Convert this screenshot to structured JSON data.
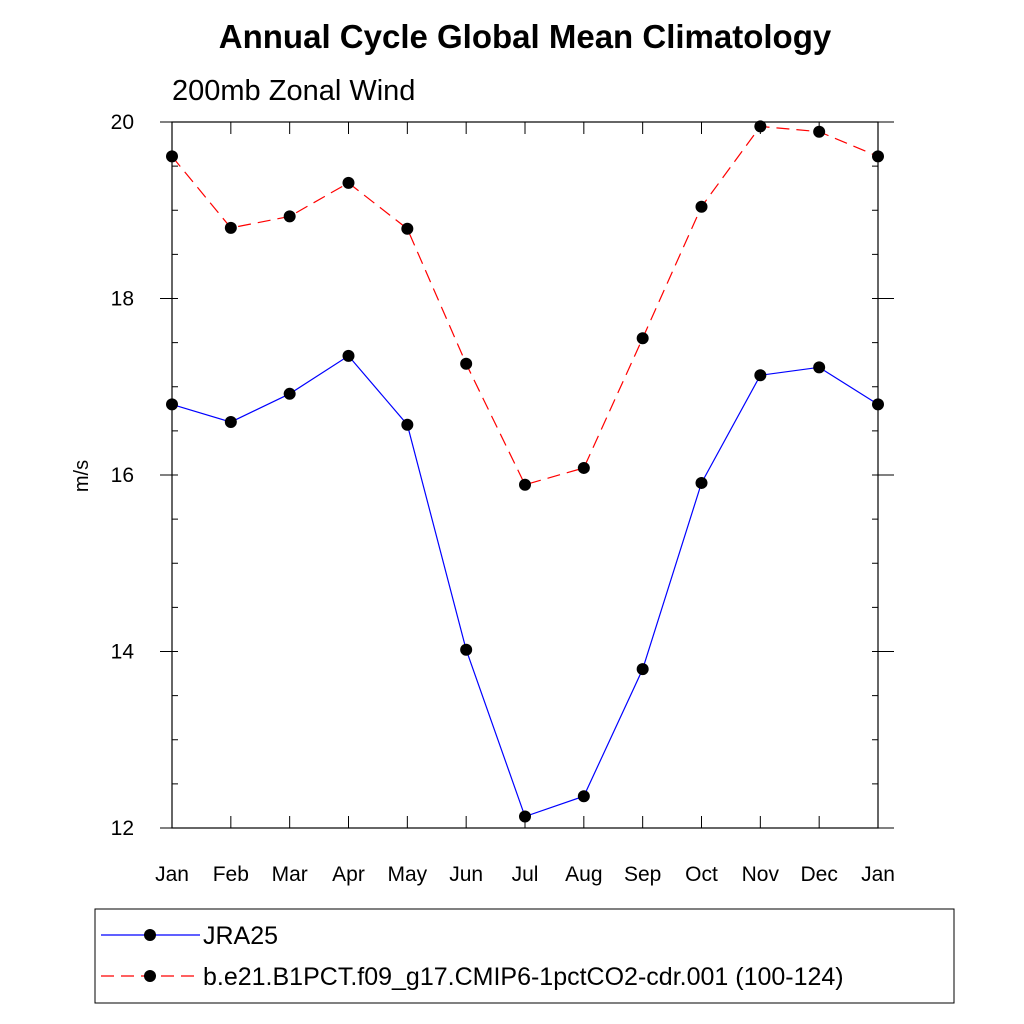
{
  "chart_data": {
    "type": "line",
    "title": "Annual Cycle Global Mean Climatology",
    "subtitle": "200mb Zonal Wind",
    "xlabel": "",
    "ylabel": "m/s",
    "categories": [
      "Jan",
      "Feb",
      "Mar",
      "Apr",
      "May",
      "Jun",
      "Jul",
      "Aug",
      "Sep",
      "Oct",
      "Nov",
      "Dec",
      "Jan"
    ],
    "ylim": [
      12,
      20
    ],
    "yticks": [
      12,
      14,
      16,
      18,
      20
    ],
    "yticks_labels": [
      "12",
      "14",
      "16",
      "18",
      "20"
    ],
    "grid": false,
    "legend_position": "bottom",
    "series": [
      {
        "name": "JRA25",
        "color": "#0000ff",
        "style": "solid",
        "values": [
          16.8,
          16.6,
          16.92,
          17.35,
          16.57,
          14.02,
          12.13,
          12.36,
          13.8,
          15.91,
          17.13,
          17.22,
          16.8
        ]
      },
      {
        "name": "b.e21.B1PCT.f09_g17.CMIP6-1pctCO2-cdr.001 (100-124)",
        "color": "#ff0000",
        "style": "dashed",
        "values": [
          19.61,
          18.8,
          18.93,
          19.31,
          18.79,
          17.26,
          15.89,
          16.08,
          17.55,
          19.04,
          19.95,
          19.89,
          19.61
        ]
      }
    ]
  }
}
